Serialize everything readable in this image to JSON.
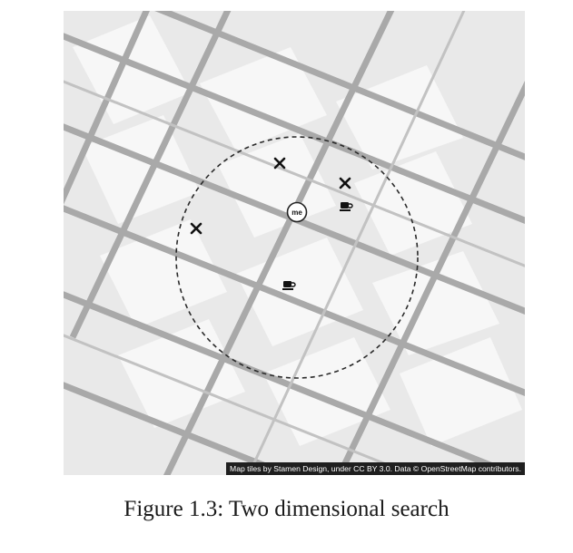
{
  "map": {
    "attribution": "Map tiles by Stamen Design, under CC BY 3.0. Data © OpenStreetMap contributors.",
    "center_marker_label": "me",
    "colors": {
      "background": "#e9e9e9",
      "block": "#f6f6f6",
      "street": "#a9a9a9",
      "search_radius": "#2a2a2a",
      "marker": "#111111"
    },
    "markers": [
      {
        "type": "restaurant",
        "icon": "fork-knife-icon"
      },
      {
        "type": "restaurant",
        "icon": "fork-knife-icon"
      },
      {
        "type": "restaurant",
        "icon": "fork-knife-icon"
      },
      {
        "type": "cafe",
        "icon": "coffee-cup-icon"
      },
      {
        "type": "cafe",
        "icon": "coffee-cup-icon"
      }
    ]
  },
  "caption": "Figure 1.3: Two dimensional search"
}
